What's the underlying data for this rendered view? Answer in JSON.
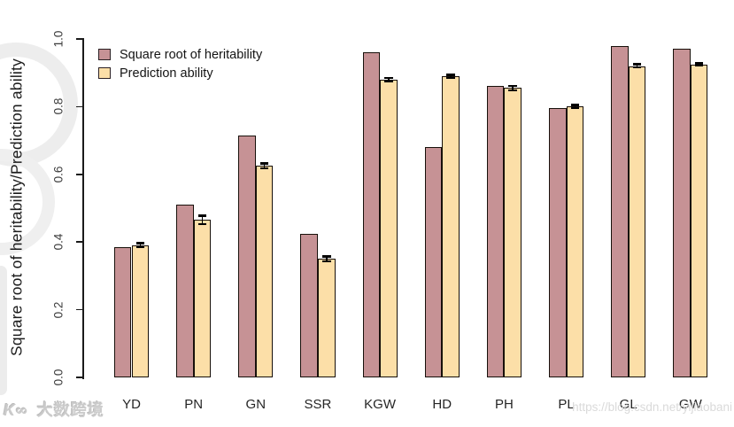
{
  "watermarks": {
    "bottom_left_logo": "K∞",
    "bottom_left_text": "大数跨境",
    "bottom_right_url": "https://blog.csdn.net/yijiaobani"
  },
  "chart_data": {
    "type": "bar",
    "title": "",
    "xlabel": "",
    "ylabel": "Square root of heritability/Prediction ability",
    "ylim": [
      0.0,
      1.0
    ],
    "yticks": [
      0.0,
      0.2,
      0.4,
      0.6,
      0.8,
      1.0
    ],
    "ytick_labels": [
      "0.0",
      "0.2",
      "0.4",
      "0.6",
      "0.8",
      "1.0"
    ],
    "grid": false,
    "legend_position": "top-left",
    "bar_border_color": "#17100a",
    "categories": [
      "YD",
      "PN",
      "GN",
      "SSR",
      "KGW",
      "HD",
      "PH",
      "PL",
      "GL",
      "GW"
    ],
    "series": [
      {
        "name": "Square root of heritability",
        "color": "#c69295",
        "values": [
          0.385,
          0.51,
          0.715,
          0.425,
          0.96,
          0.68,
          0.86,
          0.795,
          0.98,
          0.97
        ]
      },
      {
        "name": "Prediction ability",
        "color": "#fcdfa8",
        "values": [
          0.39,
          0.465,
          0.625,
          0.35,
          0.88,
          0.89,
          0.855,
          0.8,
          0.92,
          0.925
        ],
        "errors": [
          0.006,
          0.013,
          0.007,
          0.007,
          0.005,
          0.004,
          0.006,
          0.004,
          0.005,
          0.004
        ]
      }
    ]
  }
}
